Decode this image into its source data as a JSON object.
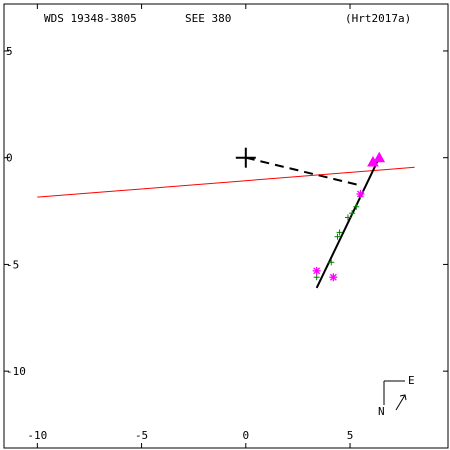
{
  "header": {
    "left": "WDS 19348-3805",
    "center": "SEE 380",
    "right": "(Hrt2017a)"
  },
  "compass": {
    "east": "E",
    "north": "N"
  },
  "chart_data": {
    "type": "scatter",
    "title": "",
    "xlabel": "",
    "ylabel": "",
    "xlim": [
      -11.6,
      9.7
    ],
    "ylim": [
      -13.6,
      7.2
    ],
    "xticks": [
      -10,
      -5,
      0,
      5
    ],
    "xtick_labels": [
      "-10",
      "-5",
      "0",
      "5"
    ],
    "yticks": [
      5,
      0,
      -5,
      -10
    ],
    "ytick_labels": [
      "5",
      "0",
      "-5",
      "-10"
    ],
    "grid": false,
    "colors": {
      "frame": "#000000",
      "primary_cross": "#000000",
      "red_line": "#ff0000",
      "green_points": "#008000",
      "magenta_points": "#ff00ff",
      "black_lines": "#000000"
    },
    "primary": {
      "x": 0.0,
      "y": 0.0
    },
    "red_line": {
      "x": [
        -10.0,
        8.1
      ],
      "y": [
        -1.85,
        -0.45
      ]
    },
    "orbit_line": {
      "x": [
        3.4,
        6.4
      ],
      "y": [
        -6.1,
        0.0
      ]
    },
    "dashed_line": {
      "x": [
        0.0,
        5.5
      ],
      "y": [
        0.0,
        -1.3
      ]
    },
    "green_points": {
      "x": [
        3.4,
        4.1,
        4.4,
        4.5,
        4.9,
        5.1,
        5.3,
        5.5
      ],
      "y": [
        -5.6,
        -4.9,
        -3.7,
        -3.5,
        -2.8,
        -2.6,
        -2.3,
        -1.8
      ]
    },
    "magenta_asterisks": {
      "x": [
        3.4,
        4.2,
        5.5
      ],
      "y": [
        -5.3,
        -5.6,
        -1.7
      ]
    },
    "magenta_triangles": {
      "x": [
        6.1,
        6.4
      ],
      "y": [
        -0.2,
        0.0
      ]
    }
  }
}
